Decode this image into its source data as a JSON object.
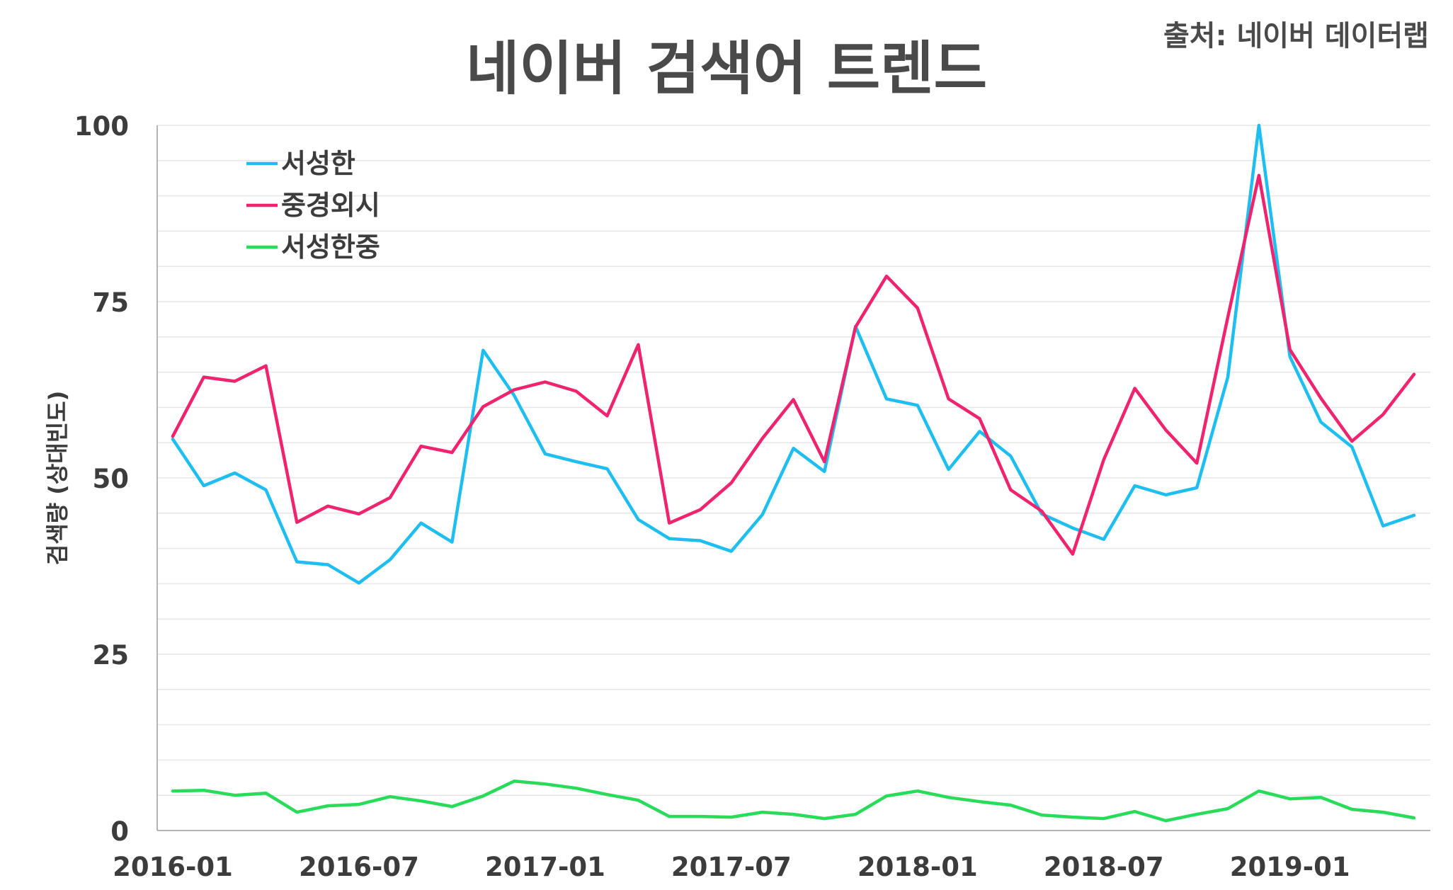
{
  "header": {
    "title": "네이버 검색어 트렌드",
    "source": "출처: 네이버 데이터랩"
  },
  "chart_data": {
    "type": "line",
    "title": "네이버 검색어 트렌드",
    "xlabel": "",
    "ylabel": "검색량 (상대빈도)",
    "ylim": [
      0,
      100
    ],
    "yticks": [
      0,
      25,
      50,
      75,
      100
    ],
    "grid": "horizontal every 5",
    "legend": "top-left",
    "x": [
      "2016-01",
      "2016-02",
      "2016-03",
      "2016-04",
      "2016-05",
      "2016-06",
      "2016-07",
      "2016-08",
      "2016-09",
      "2016-10",
      "2016-11",
      "2016-12",
      "2017-01",
      "2017-02",
      "2017-03",
      "2017-04",
      "2017-05",
      "2017-06",
      "2017-07",
      "2017-08",
      "2017-09",
      "2017-10",
      "2017-11",
      "2017-12",
      "2018-01",
      "2018-02",
      "2018-03",
      "2018-04",
      "2018-05",
      "2018-06",
      "2018-07",
      "2018-08",
      "2018-09",
      "2018-10",
      "2018-11",
      "2018-12",
      "2019-01",
      "2019-02",
      "2019-03",
      "2019-04",
      "2019-05"
    ],
    "xticks": [
      "2016-01",
      "2016-07",
      "2017-01",
      "2017-07",
      "2018-01",
      "2018-07",
      "2019-01"
    ],
    "series": [
      {
        "name": "서성한",
        "color": "#1ebef0",
        "values": [
          55.5,
          48.9,
          50.7,
          48.3,
          38.1,
          37.7,
          35.1,
          38.4,
          43.6,
          40.9,
          68.1,
          61.7,
          53.4,
          52.3,
          51.3,
          44.1,
          41.4,
          41.1,
          39.6,
          44.8,
          54.2,
          50.9,
          71.5,
          61.2,
          60.3,
          51.2,
          56.6,
          53.1,
          44.9,
          42.9,
          41.3,
          48.9,
          47.6,
          48.6,
          64.3,
          100.0,
          67.2,
          57.9,
          54.4,
          43.2,
          44.7
        ]
      },
      {
        "name": "중경외시",
        "color": "#f0236e",
        "values": [
          55.9,
          64.3,
          63.7,
          65.9,
          43.7,
          46.0,
          44.9,
          47.2,
          54.5,
          53.6,
          60.1,
          62.5,
          63.6,
          62.3,
          58.8,
          68.9,
          43.6,
          45.5,
          49.3,
          55.6,
          61.1,
          52.3,
          71.4,
          78.6,
          74.1,
          61.2,
          58.4,
          48.3,
          45.3,
          39.2,
          52.6,
          62.7,
          56.8,
          52.1,
          72.8,
          92.9,
          68.2,
          61.3,
          55.2,
          59.0,
          64.7
        ]
      },
      {
        "name": "서성한중",
        "color": "#28dc5a",
        "values": [
          5.6,
          5.7,
          5.0,
          5.3,
          2.6,
          3.5,
          3.7,
          4.8,
          4.2,
          3.4,
          4.9,
          7.0,
          6.6,
          6.0,
          5.1,
          4.3,
          2.0,
          2.0,
          1.9,
          2.6,
          2.3,
          1.7,
          2.3,
          4.9,
          5.6,
          4.7,
          4.1,
          3.6,
          2.2,
          1.9,
          1.7,
          2.7,
          1.4,
          2.3,
          3.1,
          5.6,
          4.5,
          4.7,
          3.0,
          2.6,
          1.8
        ]
      }
    ]
  }
}
